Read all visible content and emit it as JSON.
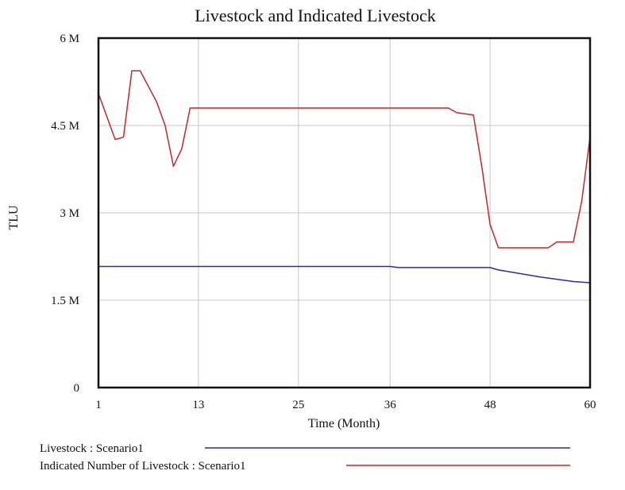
{
  "chart_data": {
    "type": "line",
    "title": "Livestock and Indicated Livestock",
    "xlabel": "Time (Month)",
    "ylabel": "TLU",
    "xlim": [
      1,
      60
    ],
    "ylim": [
      0,
      6000000
    ],
    "x_ticks": [
      1,
      13,
      25,
      36,
      48,
      60
    ],
    "y_ticks": [
      {
        "value": 0,
        "label": "0"
      },
      {
        "value": 1500000,
        "label": "1.5 M"
      },
      {
        "value": 3000000,
        "label": "3 M"
      },
      {
        "value": 4500000,
        "label": "4.5 M"
      },
      {
        "value": 6000000,
        "label": "6 M"
      }
    ],
    "grid": true,
    "legend_position": "bottom",
    "series": [
      {
        "name": "Livestock : Scenario1",
        "color": "#2a2aa8",
        "points": [
          [
            1,
            2080000
          ],
          [
            36,
            2080000
          ],
          [
            37,
            2060000
          ],
          [
            48,
            2060000
          ],
          [
            49,
            2020000
          ],
          [
            54,
            1900000
          ],
          [
            58,
            1820000
          ],
          [
            60,
            1800000
          ]
        ]
      },
      {
        "name": "Indicated Number of Livestock : Scenario1",
        "color": "#c0282d",
        "points": [
          [
            1,
            5050000
          ],
          [
            3,
            4260000
          ],
          [
            4,
            4300000
          ],
          [
            5,
            5440000
          ],
          [
            6,
            5440000
          ],
          [
            8,
            4900000
          ],
          [
            9,
            4500000
          ],
          [
            10,
            3800000
          ],
          [
            11,
            4100000
          ],
          [
            12,
            4800000
          ],
          [
            43,
            4800000
          ],
          [
            44,
            4720000
          ],
          [
            46,
            4680000
          ],
          [
            47,
            3800000
          ],
          [
            48,
            2800000
          ],
          [
            49,
            2400000
          ],
          [
            55,
            2400000
          ],
          [
            56,
            2500000
          ],
          [
            58,
            2500000
          ],
          [
            59,
            3200000
          ],
          [
            60,
            4300000
          ]
        ]
      }
    ]
  }
}
